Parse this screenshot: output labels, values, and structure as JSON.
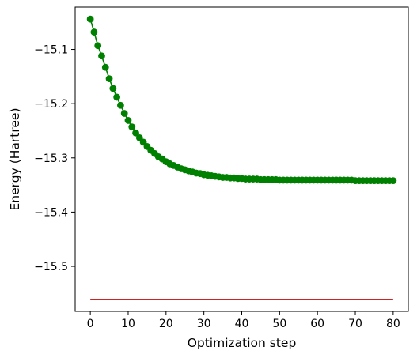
{
  "chart_data": {
    "type": "line",
    "title": "",
    "xlabel": "Optimization step",
    "ylabel": "Energy (Hartree)",
    "xlim": [
      -4,
      84
    ],
    "ylim": [
      -15.583,
      -15.022
    ],
    "xticks": [
      0,
      10,
      20,
      30,
      40,
      50,
      60,
      70,
      80
    ],
    "yticks": [
      -15.1,
      -15.2,
      -15.3,
      -15.4,
      -15.5
    ],
    "ytick_labels": [
      "−15.1",
      "−15.2",
      "−15.3",
      "−15.4",
      "−15.5"
    ],
    "grid": false,
    "legend": "none",
    "series": [
      {
        "color": "#008000",
        "marker": "circle",
        "x": [
          0,
          1,
          2,
          3,
          4,
          5,
          6,
          7,
          8,
          9,
          10,
          11,
          12,
          13,
          14,
          15,
          16,
          17,
          18,
          19,
          20,
          21,
          22,
          23,
          24,
          25,
          26,
          27,
          28,
          29,
          30,
          31,
          32,
          33,
          34,
          35,
          36,
          37,
          38,
          39,
          40,
          41,
          42,
          43,
          44,
          45,
          46,
          47,
          48,
          49,
          50,
          51,
          52,
          53,
          54,
          55,
          56,
          57,
          58,
          59,
          60,
          61,
          62,
          63,
          64,
          65,
          66,
          67,
          68,
          69,
          70,
          71,
          72,
          73,
          74,
          75,
          76,
          77,
          78,
          79,
          80
        ],
        "y": [
          -15.044,
          -15.068,
          -15.093,
          -15.112,
          -15.133,
          -15.154,
          -15.172,
          -15.188,
          -15.203,
          -15.218,
          -15.231,
          -15.243,
          -15.254,
          -15.263,
          -15.271,
          -15.279,
          -15.286,
          -15.292,
          -15.298,
          -15.302,
          -15.307,
          -15.311,
          -15.314,
          -15.317,
          -15.32,
          -15.322,
          -15.324,
          -15.326,
          -15.328,
          -15.329,
          -15.331,
          -15.332,
          -15.333,
          -15.334,
          -15.335,
          -15.336,
          -15.336,
          -15.337,
          -15.337,
          -15.338,
          -15.338,
          -15.339,
          -15.339,
          -15.339,
          -15.339,
          -15.34,
          -15.34,
          -15.34,
          -15.34,
          -15.34,
          -15.341,
          -15.341,
          -15.341,
          -15.341,
          -15.341,
          -15.341,
          -15.341,
          -15.341,
          -15.341,
          -15.341,
          -15.341,
          -15.341,
          -15.341,
          -15.341,
          -15.341,
          -15.341,
          -15.341,
          -15.341,
          -15.341,
          -15.341,
          -15.342,
          -15.342,
          -15.342,
          -15.342,
          -15.342,
          -15.342,
          -15.342,
          -15.342,
          -15.342,
          -15.342,
          -15.342
        ]
      },
      {
        "color": "#cc0000",
        "marker": "none",
        "x": [
          0,
          80
        ],
        "y": [
          -15.561,
          -15.561
        ]
      }
    ]
  }
}
